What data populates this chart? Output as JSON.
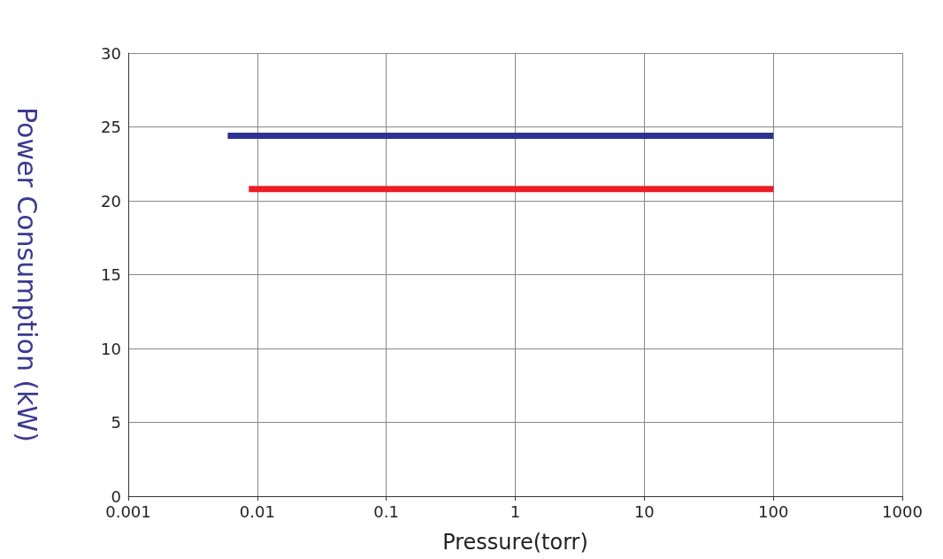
{
  "chart_data": {
    "type": "line",
    "xlabel": "Pressure(torr)",
    "ylabel": "Power Consumption (kW)",
    "log": "x",
    "xlim": [
      0.001,
      1000
    ],
    "xticks": [
      0.001,
      0.01,
      0.1,
      1,
      10,
      100,
      1000
    ],
    "ylim": [
      0,
      30
    ],
    "yticks": [
      0,
      5,
      10,
      15,
      20,
      25,
      30
    ],
    "series": [
      {
        "color": "#2e3192",
        "x": [
          0.0059,
          100
        ],
        "values": [
          24.4,
          24.4
        ]
      },
      {
        "color": "#ed1c24",
        "x": [
          0.0086,
          100
        ],
        "values": [
          20.8,
          20.8
        ]
      }
    ],
    "grid": true,
    "marker": "none",
    "line_style": "solid"
  }
}
